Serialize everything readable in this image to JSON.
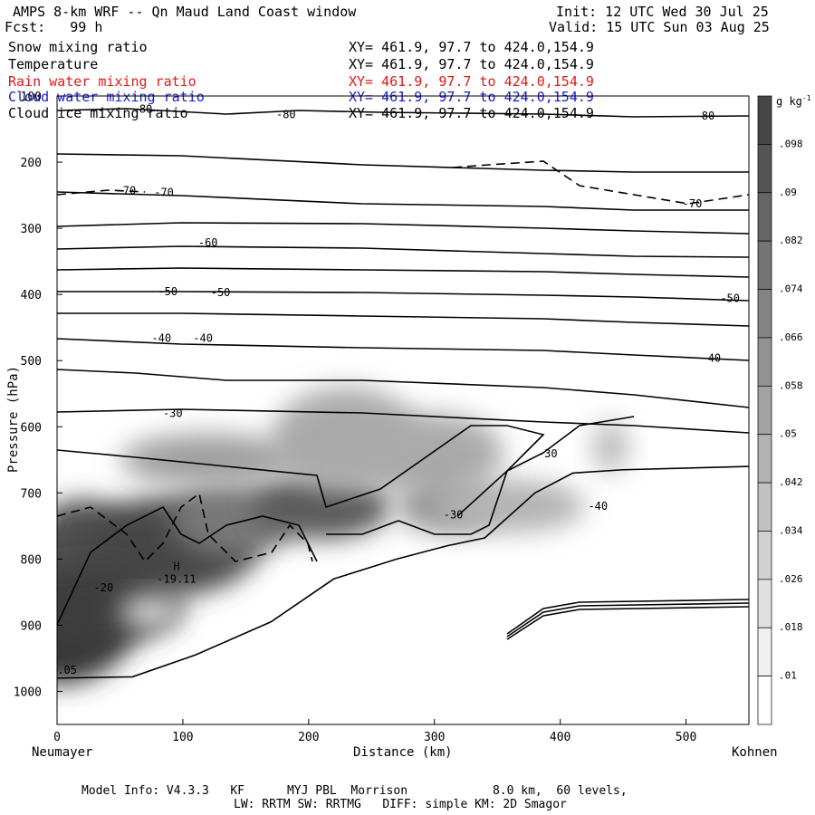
{
  "header": {
    "title": "AMPS 8-km WRF -- Qn Maud Land Coast window",
    "init": "Init: 12 UTC Wed 30 Jul 25",
    "fcst": "Fcst:   99 h",
    "valid": "Valid: 15 UTC Sun 03 Aug 25"
  },
  "legend": {
    "fields": [
      {
        "label": "Snow mixing ratio",
        "xy": "XY= 461.9, 97.7 to 424.0,154.9",
        "color": "#000000"
      },
      {
        "label": "Temperature",
        "xy": "XY= 461.9, 97.7 to 424.0,154.9",
        "color": "#000000"
      },
      {
        "label": "Rain water mixing ratio",
        "xy": "XY= 461.9, 97.7 to 424.0,154.9",
        "color": "#e01818"
      },
      {
        "label": "Cloud water mixing ratio",
        "xy": "XY= 461.9, 97.7 to 424.0,154.9",
        "color": "#1818d8"
      },
      {
        "label": "Cloud ice mixing ratio",
        "xy": "XY= 461.9, 97.7 to 424.0,154.9",
        "color": "#000000"
      }
    ]
  },
  "footer": {
    "line1": "Model Info: V4.3.3   KF      MYJ PBL  Morrison            8.0 km,  60 levels,",
    "line2": "LW: RRTM SW: RRTMG   DIFF: simple KM: 2D Smagor"
  },
  "chart_data": {
    "type": "heatmap",
    "title": "AMPS 8-km WRF -- Qn Maud Land Coast window",
    "xlabel": "Distance (km)",
    "ylabel": "Pressure (hPa)",
    "xlim": [
      0,
      550
    ],
    "ylim": [
      1050,
      100
    ],
    "x_ticks": [
      0,
      100,
      200,
      300,
      400,
      500
    ],
    "y_ticks": [
      100,
      200,
      300,
      400,
      500,
      600,
      700,
      800,
      900,
      1000
    ],
    "x_endpoint_labels": [
      "Neumayer",
      "Kohnen"
    ],
    "colorbar": {
      "unit": "g kg",
      "unit_exp": "-1",
      "ticks": [
        ".098",
        ".09",
        ".082",
        ".074",
        ".066",
        ".058",
        ".05",
        ".042",
        ".034",
        ".026",
        ".018",
        ".01"
      ],
      "range": [
        0.006,
        0.106
      ]
    },
    "temperature_contours": [
      {
        "value": -80,
        "label_points": [
          [
            68,
            120
          ],
          [
            182,
            128
          ],
          [
            515,
            130
          ]
        ],
        "labels": [
          "-80",
          "-80",
          "-80"
        ]
      },
      {
        "value": -70,
        "label_points": [
          [
            55,
            243
          ],
          [
            85,
            246
          ],
          [
            505,
            263
          ]
        ],
        "labels": [
          "-70",
          "-70",
          "-70"
        ]
      },
      {
        "value": -60,
        "label_points": [
          [
            120,
            322
          ]
        ],
        "labels": [
          "-60"
        ]
      },
      {
        "value": -50,
        "label_points": [
          [
            88,
            396
          ],
          [
            130,
            397
          ],
          [
            535,
            406
          ]
        ],
        "labels": [
          "-50",
          "-50",
          "-50"
        ]
      },
      {
        "value": -40,
        "label_points": [
          [
            83,
            466
          ],
          [
            116,
            466
          ],
          [
            520,
            496
          ]
        ],
        "labels": [
          "-40",
          "-40",
          "-40"
        ]
      },
      {
        "value": -30,
        "label_points": [
          [
            92,
            580
          ],
          [
            390,
            641
          ],
          [
            315,
            733
          ]
        ],
        "labels": [
          "-30",
          "-30",
          "-30"
        ]
      },
      {
        "value": -40,
        "label_points": [
          [
            430,
            720
          ]
        ],
        "labels": [
          "-40"
        ]
      },
      {
        "value": -20,
        "label_points": [
          [
            37,
            843
          ]
        ],
        "labels": [
          "-20"
        ]
      }
    ],
    "temperature_max": {
      "marker": "H",
      "value": "-19.11",
      "x": 95,
      "p": 825
    },
    "snow_max_region_values": [
      0.098,
      0.09
    ],
    "snow_contour_label": ".05",
    "terrain_surface": [
      [
        0,
        980
      ],
      [
        60,
        978
      ],
      [
        110,
        945
      ],
      [
        170,
        895
      ],
      [
        220,
        830
      ],
      [
        270,
        800
      ],
      [
        310,
        780
      ],
      [
        340,
        768
      ],
      [
        380,
        700
      ],
      [
        410,
        670
      ],
      [
        450,
        665
      ],
      [
        550,
        660
      ]
    ]
  }
}
